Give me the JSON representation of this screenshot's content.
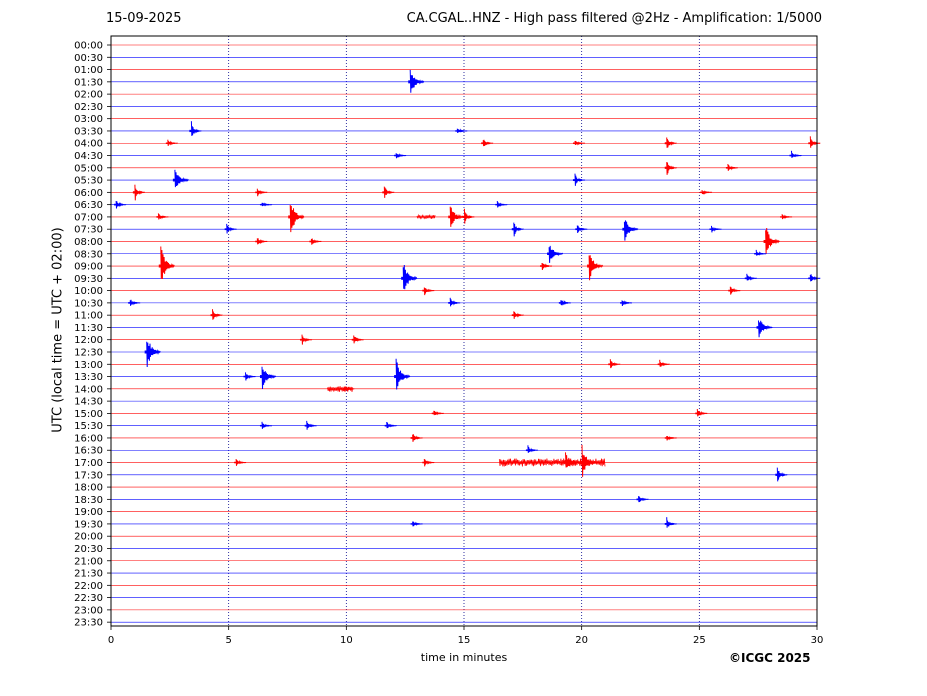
{
  "header": {
    "date": "15-09-2025",
    "title": "CA.CGAL..HNZ - High pass filtered @2Hz - Amplification: 1/5000"
  },
  "footer": {
    "copyright": "©ICGC 2025"
  },
  "colors": {
    "trace_odd": "#ff0000",
    "trace_even": "#0000ff",
    "grid": "#00008b",
    "frame": "#000000"
  },
  "chart_data": {
    "type": "line",
    "title": "CA.CGAL..HNZ - High pass filtered @2Hz - Amplification: 1/5000",
    "xlabel": "time in minutes",
    "ylabel": "UTC (local time = UTC + 02:00)",
    "xlim": [
      0,
      30
    ],
    "xticks": [
      0,
      5,
      10,
      15,
      20,
      25,
      30
    ],
    "grid": "vertical dotted at each x tick",
    "row_labels": [
      "00:00",
      "00:30",
      "01:00",
      "01:30",
      "02:00",
      "02:30",
      "03:00",
      "03:30",
      "04:00",
      "04:30",
      "05:00",
      "05:30",
      "06:00",
      "06:30",
      "07:00",
      "07:30",
      "08:00",
      "08:30",
      "09:00",
      "09:30",
      "10:00",
      "10:30",
      "11:00",
      "11:30",
      "12:00",
      "12:30",
      "13:00",
      "13:30",
      "14:00",
      "14:30",
      "15:00",
      "15:30",
      "16:00",
      "16:30",
      "17:00",
      "17:30",
      "18:00",
      "18:30",
      "19:00",
      "19:30",
      "20:00",
      "20:30",
      "21:00",
      "21:30",
      "22:00",
      "22:30",
      "23:00",
      "23:30"
    ],
    "row_colors": "alternating red and blue by row (00:00 red, 00:30 blue, ...)",
    "events": [
      {
        "row": "01:30",
        "t": 12.8,
        "amp": 16
      },
      {
        "row": "03:30",
        "t": 3.5,
        "amp": 10
      },
      {
        "row": "03:30",
        "t": 14.8,
        "amp": 4
      },
      {
        "row": "04:00",
        "t": 2.5,
        "amp": 4
      },
      {
        "row": "04:00",
        "t": 15.9,
        "amp": 6
      },
      {
        "row": "04:00",
        "t": 19.8,
        "amp": 4
      },
      {
        "row": "04:00",
        "t": 23.7,
        "amp": 8
      },
      {
        "row": "04:00",
        "t": 29.8,
        "amp": 7
      },
      {
        "row": "04:30",
        "t": 12.2,
        "amp": 4
      },
      {
        "row": "04:30",
        "t": 29.0,
        "amp": 5
      },
      {
        "row": "05:00",
        "t": 23.7,
        "amp": 10
      },
      {
        "row": "05:00",
        "t": 26.3,
        "amp": 5
      },
      {
        "row": "05:30",
        "t": 2.8,
        "amp": 14
      },
      {
        "row": "05:30",
        "t": 19.8,
        "amp": 7
      },
      {
        "row": "06:00",
        "t": 1.1,
        "amp": 10
      },
      {
        "row": "06:00",
        "t": 6.3,
        "amp": 5
      },
      {
        "row": "06:00",
        "t": 11.7,
        "amp": 8
      },
      {
        "row": "06:00",
        "t": 25.2,
        "amp": 3
      },
      {
        "row": "06:30",
        "t": 0.3,
        "amp": 6
      },
      {
        "row": "06:30",
        "t": 6.5,
        "amp": 3
      },
      {
        "row": "06:30",
        "t": 16.5,
        "amp": 4
      },
      {
        "row": "07:00",
        "t": 7.7,
        "amp": 22
      },
      {
        "row": "07:00",
        "t": 14.5,
        "amp": 13
      },
      {
        "row": "07:00",
        "t": 15.1,
        "amp": 9
      },
      {
        "row": "07:00",
        "t": 2.1,
        "amp": 5
      },
      {
        "row": "07:00",
        "t": 28.6,
        "amp": 3
      },
      {
        "row": "07:30",
        "t": 5.0,
        "amp": 6
      },
      {
        "row": "07:30",
        "t": 17.2,
        "amp": 9
      },
      {
        "row": "07:30",
        "t": 19.9,
        "amp": 6
      },
      {
        "row": "07:30",
        "t": 21.9,
        "amp": 14
      },
      {
        "row": "07:30",
        "t": 25.6,
        "amp": 4
      },
      {
        "row": "08:00",
        "t": 6.3,
        "amp": 5
      },
      {
        "row": "08:00",
        "t": 8.6,
        "amp": 5
      },
      {
        "row": "08:00",
        "t": 27.9,
        "amp": 18
      },
      {
        "row": "08:30",
        "t": 18.7,
        "amp": 12
      },
      {
        "row": "08:30",
        "t": 27.5,
        "amp": 4
      },
      {
        "row": "09:00",
        "t": 2.2,
        "amp": 24
      },
      {
        "row": "09:00",
        "t": 20.4,
        "amp": 18
      },
      {
        "row": "09:00",
        "t": 18.4,
        "amp": 5
      },
      {
        "row": "09:30",
        "t": 12.5,
        "amp": 20
      },
      {
        "row": "09:30",
        "t": 27.1,
        "amp": 5
      },
      {
        "row": "09:30",
        "t": 29.8,
        "amp": 6
      },
      {
        "row": "10:00",
        "t": 13.4,
        "amp": 6
      },
      {
        "row": "10:00",
        "t": 26.4,
        "amp": 6
      },
      {
        "row": "10:30",
        "t": 0.9,
        "amp": 5
      },
      {
        "row": "10:30",
        "t": 14.5,
        "amp": 6
      },
      {
        "row": "10:30",
        "t": 19.2,
        "amp": 5
      },
      {
        "row": "10:30",
        "t": 21.8,
        "amp": 4
      },
      {
        "row": "11:00",
        "t": 4.4,
        "amp": 8
      },
      {
        "row": "11:00",
        "t": 17.2,
        "amp": 6
      },
      {
        "row": "11:30",
        "t": 27.6,
        "amp": 12
      },
      {
        "row": "12:00",
        "t": 8.2,
        "amp": 6
      },
      {
        "row": "12:00",
        "t": 10.4,
        "amp": 6
      },
      {
        "row": "12:30",
        "t": 1.6,
        "amp": 20
      },
      {
        "row": "13:00",
        "t": 21.3,
        "amp": 6
      },
      {
        "row": "13:00",
        "t": 23.4,
        "amp": 5
      },
      {
        "row": "13:30",
        "t": 6.5,
        "amp": 16
      },
      {
        "row": "13:30",
        "t": 12.2,
        "amp": 20
      },
      {
        "row": "13:30",
        "t": 5.8,
        "amp": 5
      },
      {
        "row": "14:00",
        "t": 10.0,
        "amp": 4
      },
      {
        "row": "15:00",
        "t": 13.8,
        "amp": 4
      },
      {
        "row": "15:00",
        "t": 25.0,
        "amp": 6
      },
      {
        "row": "15:30",
        "t": 6.5,
        "amp": 4
      },
      {
        "row": "15:30",
        "t": 8.4,
        "amp": 6
      },
      {
        "row": "15:30",
        "t": 11.8,
        "amp": 5
      },
      {
        "row": "16:00",
        "t": 12.9,
        "amp": 6
      },
      {
        "row": "16:00",
        "t": 23.7,
        "amp": 4
      },
      {
        "row": "16:30",
        "t": 17.8,
        "amp": 5
      },
      {
        "row": "17:00",
        "t": 20.1,
        "amp": 18
      },
      {
        "row": "17:00",
        "t": 19.4,
        "amp": 11
      },
      {
        "row": "17:00",
        "t": 13.4,
        "amp": 5
      },
      {
        "row": "17:00",
        "t": 5.4,
        "amp": 4
      },
      {
        "row": "17:30",
        "t": 28.4,
        "amp": 10
      },
      {
        "row": "18:30",
        "t": 22.5,
        "amp": 6
      },
      {
        "row": "19:30",
        "t": 23.7,
        "amp": 7
      },
      {
        "row": "19:30",
        "t": 12.9,
        "amp": 4
      }
    ],
    "noise_bursts": [
      {
        "row": "14:00",
        "t_start": 9.2,
        "t_end": 10.3,
        "amp": 3
      },
      {
        "row": "17:00",
        "t_start": 16.5,
        "t_end": 21.0,
        "amp": 4
      },
      {
        "row": "07:00",
        "t_start": 13.0,
        "t_end": 13.8,
        "amp": 2
      }
    ]
  }
}
